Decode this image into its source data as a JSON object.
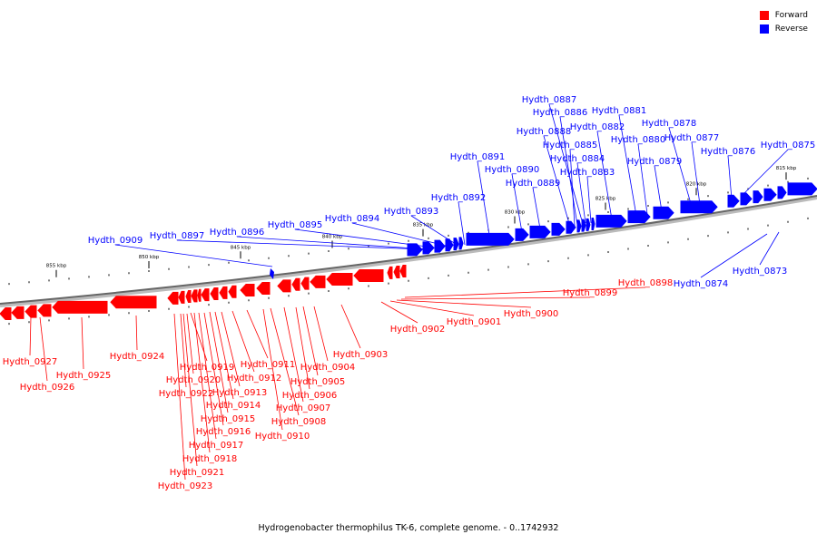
{
  "legend": [
    {
      "label": "Forward",
      "color": "#ff0000"
    },
    {
      "label": "Reverse",
      "color": "#0000ff"
    }
  ],
  "caption": "Hydrogenobacter thermophilus TK-6, complete genome. - 0..1742932",
  "colors": {
    "forward": "#ff0000",
    "reverse": "#0000ff",
    "backbone": "#888888"
  },
  "tick_labels": [
    "855 kbp",
    "850 kbp",
    "845 kbp",
    "840 kbp",
    "835 kbp",
    "830 kbp",
    "825 kbp",
    "820 kbp",
    "815 kbp"
  ],
  "reverse_genes": [
    "Hydth_0909",
    "Hydth_0897",
    "Hydth_0896",
    "Hydth_0895",
    "Hydth_0894",
    "Hydth_0893",
    "Hydth_0892",
    "Hydth_0891",
    "Hydth_0890",
    "Hydth_0889",
    "Hydth_0888",
    "Hydth_0887",
    "Hydth_0886",
    "Hydth_0885",
    "Hydth_0884",
    "Hydth_0883",
    "Hydth_0882",
    "Hydth_0881",
    "Hydth_0880",
    "Hydth_0879",
    "Hydth_0878",
    "Hydth_0877",
    "Hydth_0876",
    "Hydth_0875",
    "Hydth_0874",
    "Hydth_0873"
  ],
  "forward_genes": [
    "Hydth_0927",
    "Hydth_0926",
    "Hydth_0925",
    "Hydth_0924",
    "Hydth_0923",
    "Hydth_0922",
    "Hydth_0921",
    "Hydth_0920",
    "Hydth_0919",
    "Hydth_0918",
    "Hydth_0917",
    "Hydth_0916",
    "Hydth_0915",
    "Hydth_0914",
    "Hydth_0913",
    "Hydth_0912",
    "Hydth_0911",
    "Hydth_0910",
    "Hydth_0908",
    "Hydth_0907",
    "Hydth_0906",
    "Hydth_0905",
    "Hydth_0904",
    "Hydth_0903",
    "Hydth_0902",
    "Hydth_0901",
    "Hydth_0900",
    "Hydth_0899",
    "Hydth_0898"
  ]
}
